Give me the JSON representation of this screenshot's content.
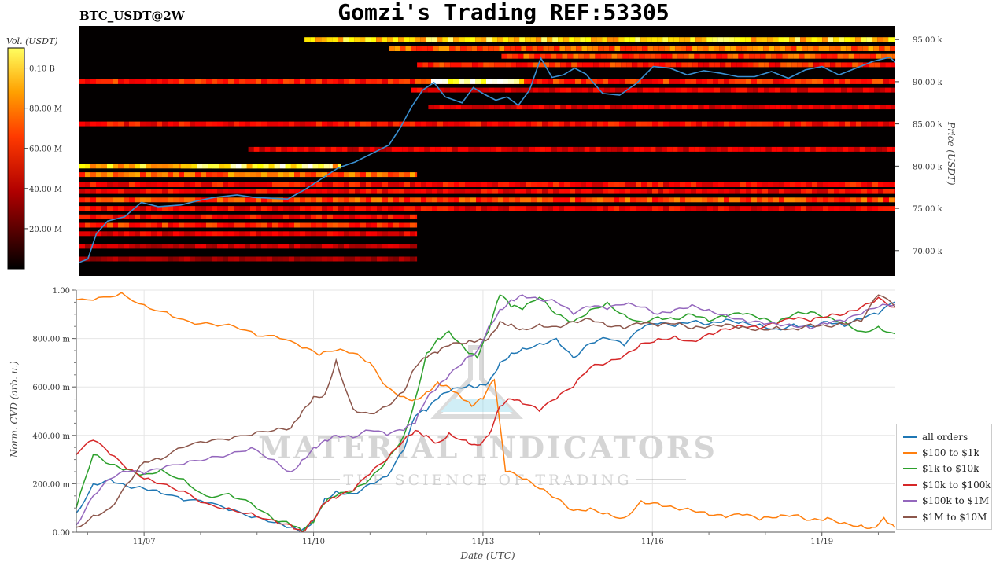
{
  "header": {
    "title": "Gomzi's Trading REF:53305",
    "pair": "BTC_USDT@2W"
  },
  "watermark": {
    "main": "MATERIAL INDICATORS",
    "sub": "THE SCIENCE OF TRADING"
  },
  "colors": {
    "all_orders": "#1f77b4",
    "r100_1k": "#ff7f0e",
    "r1k_10k": "#2ca02c",
    "r10k_100k": "#d62728",
    "r100k_1m": "#9467bd",
    "r1m_10m": "#8c564b",
    "price_line": "#3a8fd0"
  },
  "chart_data": [
    {
      "type": "heatmap",
      "title": "",
      "colorbar": {
        "label": "Vol. (USDT)",
        "ticks": [
          "0.10 B",
          "80.00 M",
          "60.00 M",
          "40.00 M",
          "20.00 M"
        ],
        "tick_values": [
          100000000,
          80000000,
          60000000,
          40000000,
          20000000
        ],
        "range": [
          0,
          110000000
        ],
        "colormap": "hot"
      },
      "y_axis": {
        "label": "Price (USDT)",
        "ticks": [
          "95.00 k",
          "90.00 k",
          "85.00 k",
          "80.00 k",
          "75.00 k",
          "70.00 k"
        ],
        "tick_values": [
          95000,
          90000,
          85000,
          80000,
          75000,
          70000
        ],
        "ylim": [
          67000,
          96600
        ],
        "position": "right"
      },
      "x_range_days": [
        0,
        14.5
      ],
      "bands": [
        {
          "price": 95000,
          "from": 4.0,
          "to": 14.5,
          "intensity": 0.75
        },
        {
          "price": 93900,
          "from": 5.5,
          "to": 14.5,
          "intensity": 0.55
        },
        {
          "price": 93000,
          "from": 7.5,
          "to": 14.5,
          "intensity": 0.5
        },
        {
          "price": 92000,
          "from": 6.0,
          "to": 14.5,
          "intensity": 0.45
        },
        {
          "price": 90000,
          "from": 0.0,
          "to": 14.5,
          "intensity": 0.45
        },
        {
          "price": 90000,
          "from": 6.25,
          "to": 7.9,
          "intensity": 0.9
        },
        {
          "price": 89000,
          "from": 5.9,
          "to": 14.5,
          "intensity": 0.35
        },
        {
          "price": 87000,
          "from": 6.2,
          "to": 14.5,
          "intensity": 0.35
        },
        {
          "price": 85000,
          "from": 0.0,
          "to": 14.5,
          "intensity": 0.4
        },
        {
          "price": 82000,
          "from": 3.0,
          "to": 14.5,
          "intensity": 0.35
        },
        {
          "price": 80000,
          "from": 0.0,
          "to": 4.65,
          "intensity": 0.72
        },
        {
          "price": 80000,
          "from": 1.8,
          "to": 4.5,
          "intensity": 0.85
        },
        {
          "price": 79000,
          "from": 0.0,
          "to": 6.0,
          "intensity": 0.55
        },
        {
          "price": 77800,
          "from": 0.0,
          "to": 14.5,
          "intensity": 0.4
        },
        {
          "price": 77000,
          "from": 0.0,
          "to": 14.5,
          "intensity": 0.38
        },
        {
          "price": 76000,
          "from": 0.0,
          "to": 14.5,
          "intensity": 0.5
        },
        {
          "price": 75000,
          "from": 0.0,
          "to": 14.5,
          "intensity": 0.38
        },
        {
          "price": 74000,
          "from": 0.0,
          "to": 6.0,
          "intensity": 0.4
        },
        {
          "price": 73000,
          "from": 0.0,
          "to": 6.0,
          "intensity": 0.45
        },
        {
          "price": 72000,
          "from": 0.0,
          "to": 6.0,
          "intensity": 0.35
        },
        {
          "price": 70500,
          "from": 0.0,
          "to": 6.0,
          "intensity": 0.3
        },
        {
          "price": 69000,
          "from": 0.0,
          "to": 6.0,
          "intensity": 0.25
        }
      ],
      "price_series": {
        "name": "",
        "x": [
          0,
          0.15,
          0.3,
          0.5,
          0.8,
          1.1,
          1.4,
          1.8,
          2.1,
          2.4,
          2.8,
          3.1,
          3.4,
          3.7,
          4.0,
          4.3,
          4.6,
          4.9,
          5.2,
          5.5,
          5.7,
          5.9,
          6.1,
          6.3,
          6.5,
          6.8,
          7.0,
          7.2,
          7.4,
          7.6,
          7.8,
          8.0,
          8.2,
          8.4,
          8.6,
          8.8,
          9.0,
          9.3,
          9.6,
          9.9,
          10.2,
          10.5,
          10.8,
          11.1,
          11.4,
          11.7,
          12.0,
          12.3,
          12.6,
          12.9,
          13.2,
          13.5,
          13.8,
          14.1,
          14.4,
          14.5
        ],
        "y": [
          68600,
          69000,
          72000,
          73500,
          74000,
          75700,
          75200,
          75400,
          75900,
          76300,
          76600,
          76300,
          76200,
          76100,
          77200,
          78500,
          79800,
          80500,
          81500,
          82500,
          84500,
          87000,
          89000,
          89900,
          88200,
          87500,
          89300,
          88500,
          87800,
          88200,
          87200,
          89000,
          92800,
          90500,
          90800,
          91600,
          90900,
          88600,
          88400,
          89800,
          91800,
          91600,
          90800,
          91300,
          91000,
          90600,
          90600,
          91200,
          90400,
          91400,
          91800,
          90800,
          91600,
          92400,
          92900,
          92300
        ]
      }
    },
    {
      "type": "line",
      "title": "",
      "xlabel": "Date (UTC)",
      "ylabel": "Norm. CVD (arb. u.)",
      "ylim": [
        0,
        1
      ],
      "xlim": [
        0,
        14.5
      ],
      "x_ticks": [
        "11/07",
        "11/10",
        "11/13",
        "11/16",
        "11/19"
      ],
      "x_tick_values": [
        1.2,
        4.2,
        7.2,
        10.2,
        13.2
      ],
      "y_ticks": [
        "0.00",
        "200.00 m",
        "400.00 m",
        "600.00 m",
        "800.00 m",
        "1.00"
      ],
      "y_tick_values": [
        0,
        0.2,
        0.4,
        0.6,
        0.8,
        1.0
      ],
      "grid": true,
      "legend_position": "bottom-right, outside",
      "series": [
        {
          "name": "all orders",
          "x": [
            0,
            0.3,
            0.6,
            0.9,
            1.2,
            1.5,
            1.9,
            2.3,
            2.7,
            3.1,
            3.5,
            3.8,
            4.0,
            4.2,
            4.4,
            4.6,
            4.9,
            5.2,
            5.5,
            5.8,
            6.0,
            6.2,
            6.4,
            6.6,
            6.9,
            7.1,
            7.3,
            7.5,
            7.7,
            7.9,
            8.2,
            8.5,
            8.8,
            9.1,
            9.4,
            9.7,
            10.0,
            10.3,
            10.6,
            10.9,
            11.2,
            11.5,
            11.8,
            12.1,
            12.4,
            12.7,
            13.0,
            13.3,
            13.6,
            13.9,
            14.2,
            14.5
          ],
          "y": [
            0.08,
            0.2,
            0.22,
            0.19,
            0.18,
            0.16,
            0.13,
            0.12,
            0.09,
            0.06,
            0.04,
            0.02,
            0.01,
            0.05,
            0.14,
            0.17,
            0.16,
            0.2,
            0.23,
            0.34,
            0.48,
            0.5,
            0.55,
            0.58,
            0.6,
            0.6,
            0.62,
            0.7,
            0.74,
            0.76,
            0.78,
            0.8,
            0.72,
            0.78,
            0.8,
            0.77,
            0.84,
            0.86,
            0.85,
            0.87,
            0.86,
            0.88,
            0.87,
            0.86,
            0.84,
            0.86,
            0.85,
            0.87,
            0.85,
            0.88,
            0.9,
            0.95
          ]
        },
        {
          "name": "$100 to $1k",
          "x": [
            0,
            0.4,
            0.8,
            1.2,
            1.6,
            2.0,
            2.4,
            2.8,
            3.2,
            3.6,
            4.0,
            4.3,
            4.6,
            4.9,
            5.2,
            5.5,
            5.8,
            6.0,
            6.2,
            6.4,
            6.6,
            6.8,
            7.0,
            7.2,
            7.4,
            7.6,
            7.9,
            8.2,
            8.5,
            8.8,
            9.1,
            9.4,
            9.7,
            10.0,
            10.3,
            10.6,
            10.9,
            11.2,
            11.5,
            11.8,
            12.1,
            12.4,
            12.7,
            13.0,
            13.3,
            13.6,
            13.9,
            14.1,
            14.3,
            14.5
          ],
          "y": [
            0.96,
            0.97,
            0.99,
            0.94,
            0.91,
            0.87,
            0.86,
            0.85,
            0.81,
            0.8,
            0.76,
            0.73,
            0.75,
            0.74,
            0.7,
            0.6,
            0.56,
            0.55,
            0.58,
            0.62,
            0.6,
            0.56,
            0.52,
            0.55,
            0.63,
            0.25,
            0.22,
            0.18,
            0.14,
            0.09,
            0.1,
            0.08,
            0.06,
            0.13,
            0.12,
            0.1,
            0.09,
            0.07,
            0.06,
            0.07,
            0.05,
            0.06,
            0.07,
            0.05,
            0.06,
            0.04,
            0.03,
            0.02,
            0.06,
            0.02
          ]
        },
        {
          "name": "$1k to $10k",
          "x": [
            0,
            0.3,
            0.6,
            0.9,
            1.2,
            1.5,
            1.9,
            2.3,
            2.7,
            3.1,
            3.5,
            3.8,
            4.0,
            4.2,
            4.4,
            4.6,
            4.9,
            5.2,
            5.5,
            5.8,
            6.0,
            6.2,
            6.4,
            6.6,
            6.9,
            7.1,
            7.3,
            7.5,
            7.7,
            7.9,
            8.2,
            8.5,
            8.8,
            9.1,
            9.4,
            9.7,
            10.0,
            10.3,
            10.6,
            10.9,
            11.2,
            11.5,
            11.8,
            12.1,
            12.4,
            12.7,
            13.0,
            13.3,
            13.6,
            13.9,
            14.2,
            14.5
          ],
          "y": [
            0.1,
            0.32,
            0.28,
            0.26,
            0.24,
            0.26,
            0.22,
            0.15,
            0.16,
            0.12,
            0.05,
            0.03,
            0.0,
            0.04,
            0.12,
            0.15,
            0.17,
            0.22,
            0.3,
            0.4,
            0.55,
            0.74,
            0.8,
            0.83,
            0.75,
            0.72,
            0.83,
            0.98,
            0.93,
            0.92,
            0.97,
            0.9,
            0.87,
            0.92,
            0.95,
            0.9,
            0.87,
            0.89,
            0.88,
            0.9,
            0.87,
            0.89,
            0.9,
            0.88,
            0.86,
            0.9,
            0.91,
            0.89,
            0.87,
            0.83,
            0.85,
            0.82
          ]
        },
        {
          "name": "$10k to $100k",
          "x": [
            0,
            0.3,
            0.6,
            0.9,
            1.2,
            1.5,
            1.9,
            2.3,
            2.7,
            3.1,
            3.5,
            3.8,
            4.0,
            4.2,
            4.4,
            4.6,
            4.9,
            5.2,
            5.5,
            5.8,
            6.0,
            6.2,
            6.4,
            6.6,
            6.9,
            7.1,
            7.3,
            7.5,
            7.7,
            7.9,
            8.2,
            8.5,
            8.8,
            9.1,
            9.4,
            9.7,
            10.0,
            10.3,
            10.6,
            10.9,
            11.2,
            11.5,
            11.8,
            12.1,
            12.4,
            12.7,
            13.0,
            13.3,
            13.6,
            13.9,
            14.2,
            14.5
          ],
          "y": [
            0.32,
            0.38,
            0.32,
            0.26,
            0.22,
            0.2,
            0.17,
            0.12,
            0.1,
            0.08,
            0.05,
            0.03,
            0.0,
            0.05,
            0.12,
            0.14,
            0.17,
            0.24,
            0.3,
            0.38,
            0.42,
            0.4,
            0.37,
            0.41,
            0.38,
            0.36,
            0.4,
            0.52,
            0.55,
            0.53,
            0.5,
            0.55,
            0.6,
            0.68,
            0.7,
            0.73,
            0.78,
            0.8,
            0.81,
            0.79,
            0.82,
            0.84,
            0.85,
            0.84,
            0.86,
            0.88,
            0.87,
            0.89,
            0.9,
            0.93,
            0.97,
            0.93
          ]
        },
        {
          "name": "$100k to $1M",
          "x": [
            0,
            0.3,
            0.6,
            0.9,
            1.2,
            1.5,
            1.9,
            2.3,
            2.7,
            3.1,
            3.5,
            3.8,
            4.0,
            4.2,
            4.4,
            4.6,
            4.9,
            5.2,
            5.5,
            5.8,
            6.0,
            6.2,
            6.4,
            6.6,
            6.9,
            7.1,
            7.3,
            7.5,
            7.7,
            7.9,
            8.2,
            8.5,
            8.8,
            9.1,
            9.4,
            9.7,
            10.0,
            10.3,
            10.6,
            10.9,
            11.2,
            11.5,
            11.8,
            12.1,
            12.4,
            12.7,
            13.0,
            13.3,
            13.6,
            13.9,
            14.2,
            14.5
          ],
          "y": [
            0.03,
            0.15,
            0.22,
            0.25,
            0.24,
            0.26,
            0.28,
            0.3,
            0.32,
            0.35,
            0.3,
            0.25,
            0.3,
            0.35,
            0.38,
            0.4,
            0.39,
            0.42,
            0.4,
            0.42,
            0.45,
            0.55,
            0.6,
            0.65,
            0.72,
            0.75,
            0.85,
            0.92,
            0.96,
            0.98,
            0.96,
            0.95,
            0.9,
            0.93,
            0.92,
            0.94,
            0.93,
            0.9,
            0.92,
            0.94,
            0.92,
            0.9,
            0.88,
            0.87,
            0.86,
            0.85,
            0.84,
            0.86,
            0.87,
            0.9,
            0.93,
            0.94
          ]
        },
        {
          "name": "$1M to $10M",
          "x": [
            0,
            0.3,
            0.6,
            0.9,
            1.2,
            1.5,
            1.9,
            2.3,
            2.7,
            3.1,
            3.5,
            3.8,
            4.0,
            4.2,
            4.4,
            4.6,
            4.9,
            5.2,
            5.5,
            5.8,
            6.0,
            6.2,
            6.4,
            6.6,
            6.9,
            7.1,
            7.3,
            7.5,
            7.7,
            7.9,
            8.2,
            8.5,
            8.8,
            9.1,
            9.4,
            9.7,
            10.0,
            10.3,
            10.6,
            10.9,
            11.2,
            11.5,
            11.8,
            12.1,
            12.4,
            12.7,
            13.0,
            13.3,
            13.6,
            13.9,
            14.2,
            14.5
          ],
          "y": [
            0.02,
            0.07,
            0.1,
            0.2,
            0.29,
            0.3,
            0.35,
            0.37,
            0.38,
            0.4,
            0.42,
            0.43,
            0.5,
            0.56,
            0.57,
            0.71,
            0.51,
            0.49,
            0.52,
            0.58,
            0.68,
            0.72,
            0.74,
            0.77,
            0.78,
            0.79,
            0.8,
            0.87,
            0.86,
            0.84,
            0.86,
            0.85,
            0.87,
            0.88,
            0.85,
            0.84,
            0.86,
            0.85,
            0.86,
            0.84,
            0.85,
            0.86,
            0.85,
            0.84,
            0.85,
            0.84,
            0.86,
            0.85,
            0.86,
            0.87,
            0.98,
            0.93
          ]
        }
      ]
    }
  ]
}
